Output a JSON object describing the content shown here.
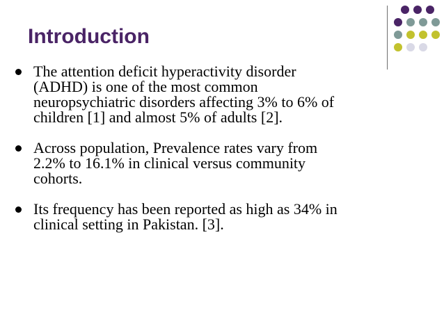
{
  "slide": {
    "title": "Introduction",
    "bullets": [
      {
        "lines": [
          "The attention deficit hyperactivity disorder",
          "(ADHD) is one of the most common",
          "neuropsychiatric disorders affecting 3% to 6% of",
          "children [1] and almost 5% of adults [2]."
        ]
      },
      {
        "lines": [
          "Across population, Prevalence rates vary from",
          "2.2% to 16.1% in clinical versus community",
          "cohorts."
        ]
      },
      {
        "lines": [
          "Its frequency has been reported as high as 34% in",
          "clinical setting in Pakistan. [3]."
        ]
      }
    ]
  },
  "colors": {
    "title": "#4a2466",
    "purple": "#4a2466",
    "teal": "#7f9a97",
    "olive": "#c2c22e",
    "lavender": "#d9d9e6"
  },
  "decoration": {
    "dot_grid": [
      [
        "purple",
        "purple",
        "purple"
      ],
      [
        "purple",
        "teal",
        "teal",
        "teal"
      ],
      [
        "teal",
        "olive",
        "olive",
        "olive"
      ],
      [
        "olive",
        "lavender",
        "lavender"
      ]
    ]
  }
}
